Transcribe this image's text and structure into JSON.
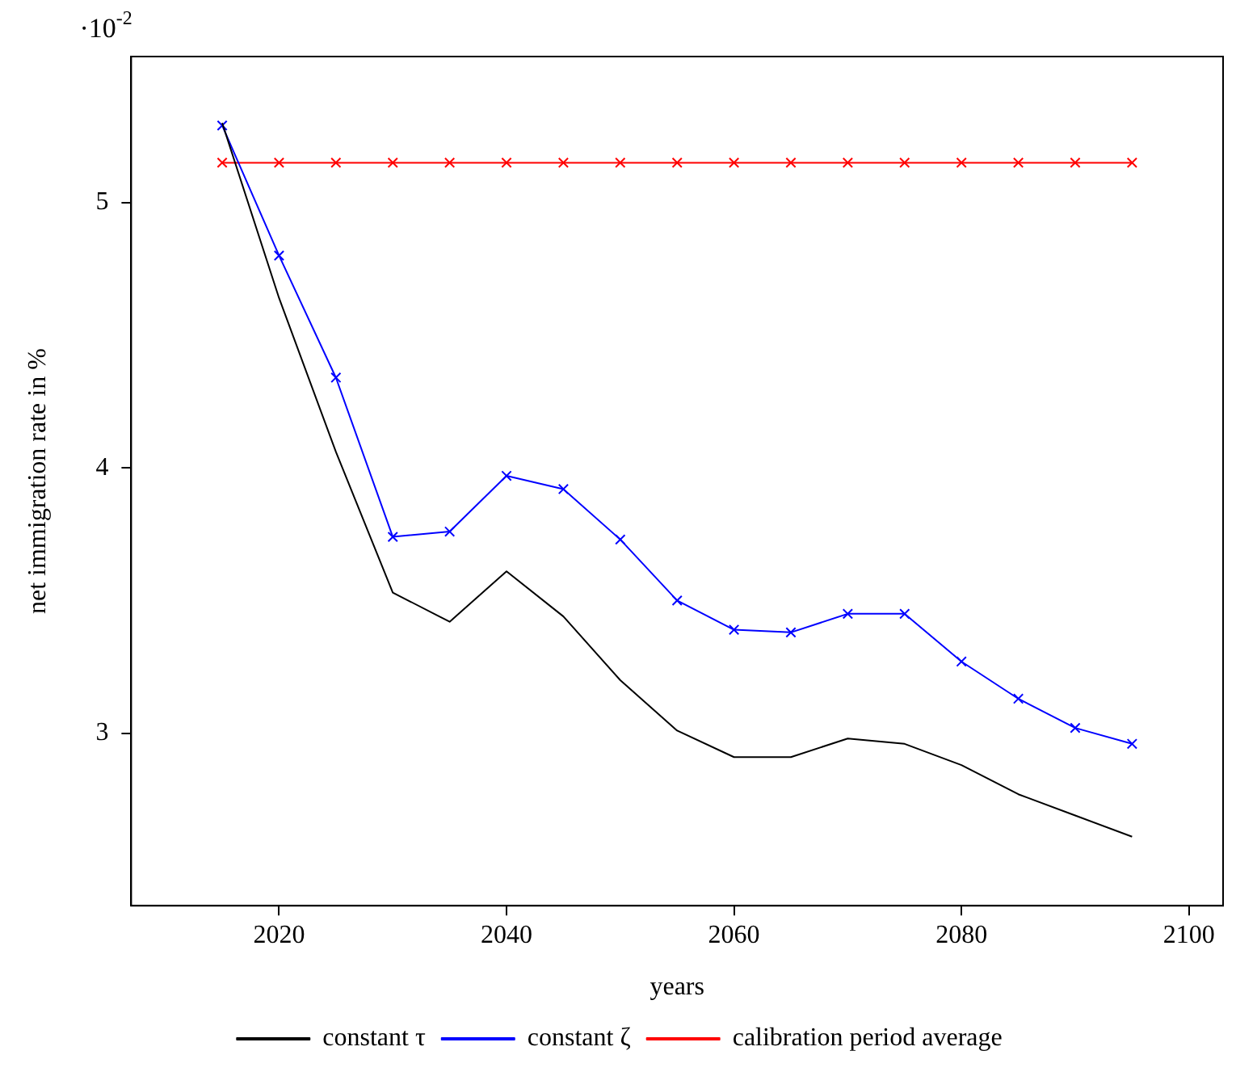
{
  "chart_data": {
    "type": "line",
    "xlabel": "years",
    "ylabel": "net immigration rate in %",
    "annotations": [
      "·10$^{-2}$"
    ],
    "x": [
      2015,
      2020,
      2025,
      2030,
      2035,
      2040,
      2045,
      2050,
      2055,
      2060,
      2065,
      2070,
      2075,
      2080,
      2085,
      2090,
      2095
    ],
    "series": [
      {
        "name": "constant τ",
        "color": "#000000",
        "marker": "none",
        "values": [
          5.3,
          4.64,
          4.06,
          3.53,
          3.42,
          3.61,
          3.44,
          3.2,
          3.01,
          2.91,
          2.91,
          2.98,
          2.96,
          2.88,
          2.77,
          2.69,
          2.61
        ]
      },
      {
        "name": "constant ζ",
        "color": "#0000ff",
        "marker": "cross",
        "values": [
          5.29,
          4.8,
          4.34,
          3.74,
          3.76,
          3.97,
          3.92,
          3.73,
          3.5,
          3.39,
          3.38,
          3.45,
          3.45,
          3.27,
          3.13,
          3.02,
          2.96
        ]
      },
      {
        "name": "calibration period average",
        "color": "#ff0000",
        "marker": "cross",
        "values": [
          5.15,
          5.15,
          5.15,
          5.15,
          5.15,
          5.15,
          5.15,
          5.15,
          5.15,
          5.15,
          5.15,
          5.15,
          5.15,
          5.15,
          5.15,
          5.15,
          5.15
        ]
      }
    ],
    "xlim": [
      2007,
      2103
    ],
    "xticks": [
      2020,
      2040,
      2060,
      2080,
      2100
    ],
    "ylim": [
      2.35,
      5.55
    ],
    "yticks": [
      3,
      4,
      5
    ],
    "grid": false,
    "legend": "bottom",
    "line_style": "solid"
  }
}
